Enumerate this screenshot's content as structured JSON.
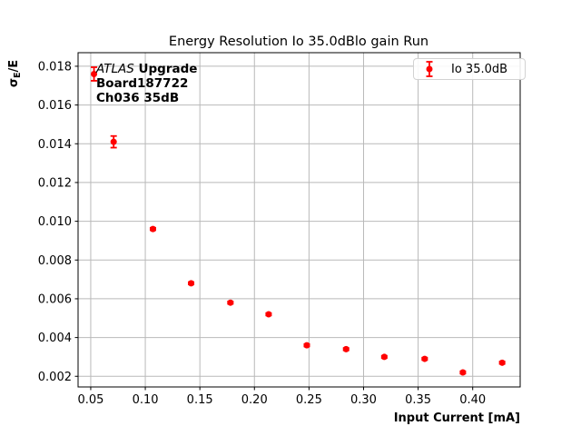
{
  "chart_data": {
    "type": "scatter",
    "title": "Energy Resolution Io 35.0dBlo gain Run",
    "xlabel": "Input Current [mA]",
    "ylabel": "σE/E",
    "ylabel_parts": {
      "sigma": "σ",
      "subscript": "E",
      "rest": "/E"
    },
    "xlim": [
      0.0384,
      0.4435
    ],
    "ylim": [
      0.00145,
      0.0187
    ],
    "grid": true,
    "legend_position": "upper right",
    "xticks": {
      "values": [
        0.05,
        0.1,
        0.15,
        0.2,
        0.25,
        0.3,
        0.35,
        0.4
      ],
      "labels": [
        "0.05",
        "0.10",
        "0.15",
        "0.20",
        "0.25",
        "0.30",
        "0.35",
        "0.40"
      ]
    },
    "yticks": {
      "values": [
        0.002,
        0.004,
        0.006,
        0.008,
        0.01,
        0.012,
        0.014,
        0.016,
        0.018
      ],
      "labels": [
        "0.002",
        "0.004",
        "0.006",
        "0.008",
        "0.010",
        "0.012",
        "0.014",
        "0.016",
        "0.018"
      ]
    },
    "series": [
      {
        "name": "Io 35.0dB",
        "color": "#ff0000",
        "marker": "circle-with-errorbar",
        "x": [
          0.053,
          0.071,
          0.107,
          0.142,
          0.178,
          0.213,
          0.248,
          0.284,
          0.319,
          0.356,
          0.391,
          0.427
        ],
        "y": [
          0.0176,
          0.0141,
          0.0096,
          0.0068,
          0.0058,
          0.0052,
          0.0036,
          0.0034,
          0.003,
          0.0029,
          0.0022,
          0.0027
        ],
        "yerr": [
          0.00035,
          0.0003,
          6e-05,
          6e-05,
          6e-05,
          6e-05,
          6e-05,
          6e-05,
          6e-05,
          6e-05,
          6e-05,
          6e-05
        ]
      }
    ],
    "annotation": {
      "line1_italic": "ATLAS",
      "line1_bold": "Upgrade",
      "line2": "Board187722",
      "line3": "Ch036 35dB"
    }
  },
  "colors": {
    "series_red": "#ff0000",
    "grid_gray": "#b9b9b9",
    "spine_black": "#000000",
    "legend_border": "#d2d2d2",
    "background": "#ffffff"
  }
}
